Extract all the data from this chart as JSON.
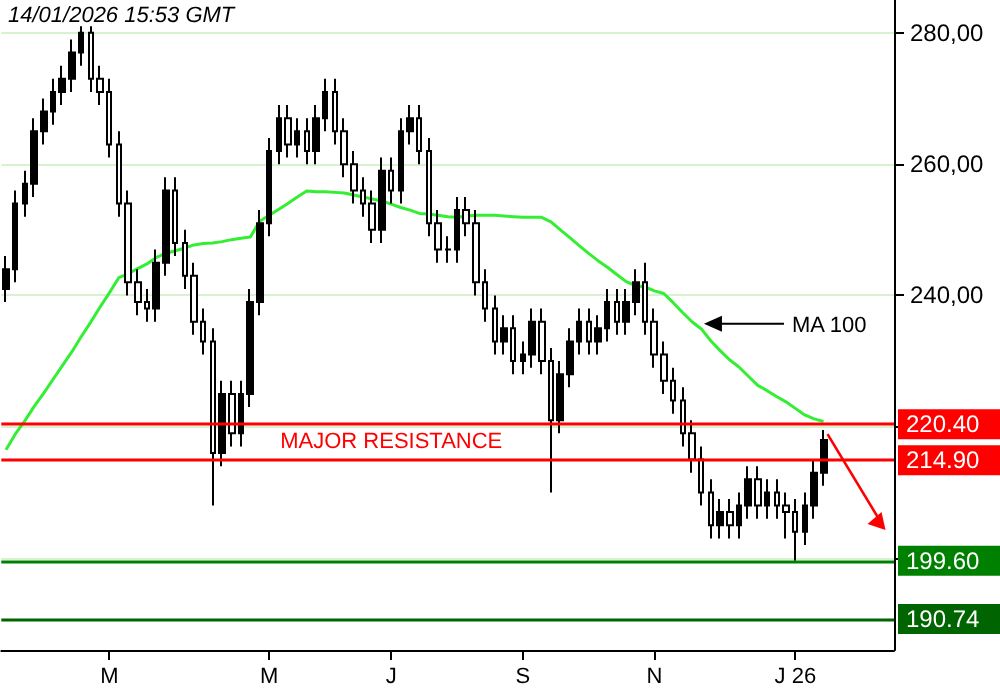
{
  "chart_data": {
    "type": "candlestick",
    "annotations": [
      "14/01/2026 15:53 GMT",
      {
        "text": "MAJOR RESISTANCE",
        "x": "J",
        "y": 220.4
      }
    ],
    "color": "#000000",
    "categories": [
      null,
      null,
      null,
      null,
      null,
      null,
      null,
      null,
      null,
      null,
      null,
      "M",
      null,
      null,
      null,
      null,
      null,
      null,
      null,
      null,
      null,
      null,
      null,
      null,
      null,
      null,
      null,
      null,
      "M",
      null,
      null,
      null,
      null,
      null,
      null,
      null,
      null,
      null,
      null,
      null,
      null,
      "J",
      null,
      null,
      null,
      null,
      null,
      null,
      null,
      null,
      null,
      null,
      null,
      null,
      null,
      "S",
      null,
      null,
      null,
      null,
      null,
      null,
      null,
      null,
      null,
      null,
      null,
      null,
      null,
      "N",
      null,
      null,
      null,
      null,
      null,
      null,
      null,
      null,
      null,
      null,
      null,
      null,
      null,
      null,
      "J 26",
      null,
      null,
      null,
      null,
      null,
      null,
      null,
      null,
      null,
      null
    ],
    "ohlc": [
      [
        241,
        246,
        239,
        244
      ],
      [
        244,
        256,
        242,
        254
      ],
      [
        254,
        259,
        252,
        257
      ],
      [
        257,
        267,
        255,
        265
      ],
      [
        265,
        270,
        263,
        268
      ],
      [
        268,
        273,
        266,
        271
      ],
      [
        271,
        275,
        269,
        273
      ],
      [
        273,
        279,
        271,
        277
      ],
      [
        277,
        281,
        275,
        280
      ],
      [
        280,
        281,
        271,
        273
      ],
      [
        273,
        275,
        269,
        271
      ],
      [
        271,
        273,
        261,
        263
      ],
      [
        263,
        265,
        252,
        254
      ],
      [
        254,
        256,
        240,
        242
      ],
      [
        242,
        244,
        237,
        239
      ],
      [
        239,
        241,
        236,
        238
      ],
      [
        238,
        247,
        236,
        245
      ],
      [
        245,
        258,
        243,
        256
      ],
      [
        256,
        258,
        246,
        248
      ],
      [
        248,
        250,
        241,
        243
      ],
      [
        243,
        245,
        234,
        236
      ],
      [
        236,
        238,
        231,
        233
      ],
      [
        233,
        235,
        208,
        216
      ],
      [
        216,
        227,
        214,
        225
      ],
      [
        225,
        227,
        217,
        219
      ],
      [
        219,
        227,
        217,
        225
      ],
      [
        225,
        241,
        223,
        239
      ],
      [
        239,
        253,
        237,
        251
      ],
      [
        251,
        264,
        249,
        262
      ],
      [
        262,
        269,
        260,
        267
      ],
      [
        267,
        269,
        261,
        263
      ],
      [
        263,
        267,
        261,
        265
      ],
      [
        265,
        267,
        260,
        262
      ],
      [
        262,
        269,
        260,
        267
      ],
      [
        267,
        273,
        265,
        271
      ],
      [
        271,
        273,
        263,
        265
      ],
      [
        265,
        267,
        258,
        260
      ],
      [
        260,
        262,
        254,
        256
      ],
      [
        256,
        258,
        252,
        254
      ],
      [
        254,
        256,
        248,
        250
      ],
      [
        250,
        261,
        248,
        259
      ],
      [
        259,
        261,
        254,
        256
      ],
      [
        256,
        267,
        254,
        265
      ],
      [
        265,
        269,
        263,
        267
      ],
      [
        267,
        269,
        260,
        262
      ],
      [
        262,
        264,
        249,
        251
      ],
      [
        251,
        253,
        245,
        247
      ],
      [
        247,
        249,
        245,
        247
      ],
      [
        247,
        255,
        245,
        253
      ],
      [
        253,
        255,
        249,
        251
      ],
      [
        251,
        253,
        240,
        242
      ],
      [
        242,
        244,
        236,
        238
      ],
      [
        238,
        240,
        231,
        233
      ],
      [
        233,
        237,
        231,
        235
      ],
      [
        235,
        237,
        228,
        230
      ],
      [
        230,
        233,
        228,
        231
      ],
      [
        231,
        238,
        229,
        236
      ],
      [
        236,
        238,
        228,
        230
      ],
      [
        230,
        232,
        210,
        221
      ],
      [
        221,
        230,
        219,
        228
      ],
      [
        228,
        235,
        226,
        233
      ],
      [
        233,
        238,
        231,
        236
      ],
      [
        236,
        238,
        231,
        233
      ],
      [
        233,
        237,
        231,
        235
      ],
      [
        235,
        241,
        233,
        239
      ],
      [
        239,
        241,
        234,
        236
      ],
      [
        236,
        241,
        234,
        239
      ],
      [
        239,
        244,
        237,
        242
      ],
      [
        242,
        245,
        234,
        236
      ],
      [
        236,
        238,
        229,
        231
      ],
      [
        231,
        233,
        225,
        227
      ],
      [
        227,
        229,
        222,
        224
      ],
      [
        224,
        226,
        217,
        219
      ],
      [
        219,
        221,
        213,
        215
      ],
      [
        215,
        217,
        208,
        210
      ],
      [
        210,
        212,
        203,
        205
      ],
      [
        205,
        209,
        203,
        207
      ],
      [
        207,
        209,
        203,
        205
      ],
      [
        205,
        210,
        203,
        208
      ],
      [
        208,
        214,
        206,
        212
      ],
      [
        212,
        214,
        206,
        208
      ],
      [
        208,
        212,
        206,
        210
      ],
      [
        210,
        212,
        206,
        208
      ],
      [
        208,
        210,
        203,
        207
      ],
      [
        207,
        209,
        199.6,
        204
      ],
      [
        204,
        210,
        202,
        208
      ],
      [
        208,
        215,
        206,
        213
      ],
      [
        213,
        219.5,
        211,
        218
      ],
      null,
      null,
      null,
      null,
      null,
      null,
      null
    ],
    "series": [
      {
        "type": "line",
        "name": "MA 100",
        "color": "#33ee33",
        "values": [
          216.5,
          218.9,
          220.9,
          223.1,
          225.1,
          227.2,
          229.3,
          231.4,
          233.7,
          235.9,
          238.2,
          240.4,
          242.7,
          243.3,
          244.1,
          244.8,
          245.8,
          246.4,
          246.8,
          247.2,
          247.7,
          247.9,
          248,
          248.2,
          248.5,
          248.7,
          248.9,
          251.3,
          252.2,
          253.1,
          254,
          255,
          255.9,
          255.8,
          255.8,
          255.7,
          255.6,
          255.3,
          255,
          254.7,
          254.4,
          253.9,
          253.4,
          253,
          252.5,
          252.4,
          252.2,
          252,
          251.9,
          252.1,
          252.2,
          252.2,
          252.2,
          252.1,
          252,
          251.9,
          251.9,
          251.9,
          251.2,
          250,
          248.8,
          247.6,
          246.4,
          245.3,
          244.3,
          243.2,
          242.1,
          241.5,
          241.3,
          240.7,
          240.3,
          238.9,
          237.4,
          236,
          234.9,
          233.1,
          231.6,
          230.2,
          229.1,
          227.7,
          226.3,
          225.5,
          224.6,
          223.8,
          222.8,
          221.8,
          221.2,
          220.8,
          null,
          null,
          null,
          null,
          null,
          null,
          null
        ]
      }
    ],
    "marker": "none",
    "ylim": [
      186,
      285
    ],
    "yticks": [
      {
        "value": 200,
        "label": null
      },
      {
        "value": 220,
        "label": null
      },
      {
        "value": 240,
        "label": "240,00"
      },
      {
        "value": 260,
        "label": "260,00"
      },
      {
        "value": 280,
        "label": "280,00"
      }
    ],
    "grid": "y",
    "ref_lines": [
      {
        "axis": "y",
        "value": 220.4,
        "label": "220.40",
        "color": "#ff0000"
      },
      {
        "axis": "y",
        "value": 214.9,
        "label": "214.90",
        "color": "#ff0000"
      },
      {
        "axis": "y",
        "value": 199.6,
        "label": "199.60",
        "color": "#008000"
      },
      {
        "axis": "y",
        "value": 190.74,
        "label": "190.74",
        "color": "#006400"
      }
    ]
  }
}
